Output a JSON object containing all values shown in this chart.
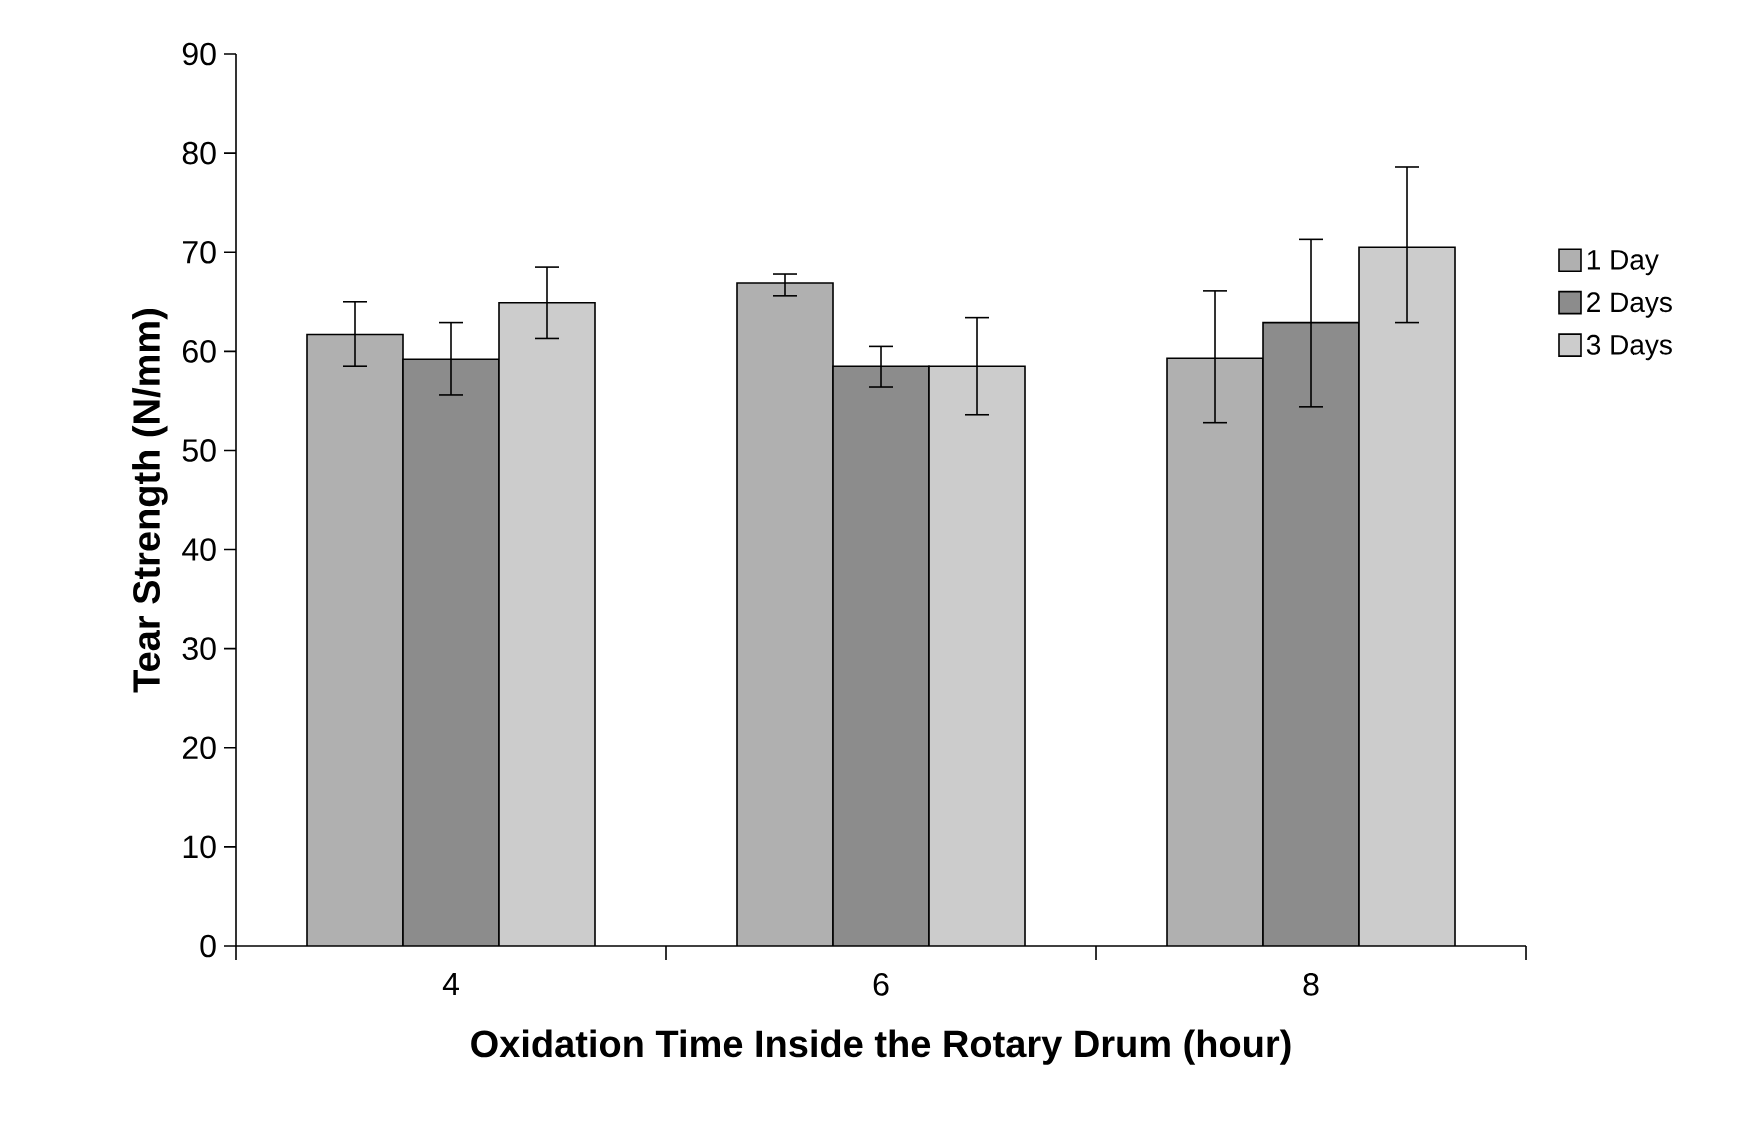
{
  "chart_data": {
    "type": "bar",
    "xlabel": "Oxidation Time Inside the Rotary Drum (hour)",
    "ylabel": "Tear Strength (N/mm)",
    "categories": [
      "4",
      "6",
      "8"
    ],
    "series": [
      {
        "name": "1 Day",
        "color": "#b0b0b0",
        "values": [
          61.7,
          66.9,
          59.3
        ],
        "errors": [
          [
            58.5,
            65.0
          ],
          [
            65.6,
            67.8
          ],
          [
            52.8,
            66.1
          ]
        ]
      },
      {
        "name": "2 Days",
        "color": "#8c8c8c",
        "values": [
          59.2,
          58.5,
          62.9
        ],
        "errors": [
          [
            55.6,
            62.9
          ],
          [
            56.4,
            60.5
          ],
          [
            54.4,
            71.3
          ]
        ]
      },
      {
        "name": "3 Days",
        "color": "#cccccc",
        "values": [
          64.9,
          58.5,
          70.5
        ],
        "errors": [
          [
            61.3,
            68.5
          ],
          [
            53.6,
            63.4
          ],
          [
            62.9,
            78.6
          ]
        ]
      }
    ],
    "ylim": [
      0,
      90
    ],
    "yticks": [
      0,
      10,
      20,
      30,
      40,
      50,
      60,
      70,
      80,
      90
    ],
    "grid": false,
    "legend": "right"
  }
}
